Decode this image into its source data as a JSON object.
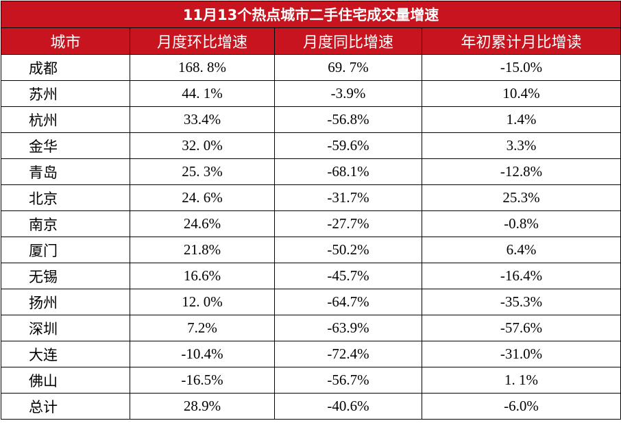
{
  "table": {
    "title": "11月13个热点城市二手住宅成交量增速",
    "header": [
      "城市",
      "月度环比增速",
      "月度同比增速",
      "年初累计月比增读"
    ],
    "rows": [
      [
        "成都",
        "168. 8%",
        "69. 7%",
        "-15.0%"
      ],
      [
        "苏州",
        "44. 1%",
        "-3.9%",
        "10.4%"
      ],
      [
        "杭州",
        "33.4%",
        "-56.8%",
        "1.4%"
      ],
      [
        "金华",
        "32. 0%",
        "-59.6%",
        "3.3%"
      ],
      [
        "青岛",
        "25. 3%",
        "-68.1%",
        "-12.8%"
      ],
      [
        "北京",
        "24. 6%",
        "-31.7%",
        "25.3%"
      ],
      [
        "南京",
        "24.6%",
        "-27.7%",
        "-0.8%"
      ],
      [
        "厦门",
        "21.8%",
        "-50.2%",
        "6.4%"
      ],
      [
        "无锡",
        "16.6%",
        "-45.7%",
        "-16.4%"
      ],
      [
        "扬州",
        "12. 0%",
        "-64.7%",
        "-35.3%"
      ],
      [
        "深圳",
        "7.2%",
        "-63.9%",
        "-57.6%"
      ],
      [
        "大连",
        "-10.4%",
        "-72.4%",
        "-31.0%"
      ],
      [
        "佛山",
        "-16.5%",
        "-56.7%",
        "1. 1%"
      ],
      [
        "总计",
        "28.9%",
        "-40.6%",
        "-6.0%"
      ]
    ]
  }
}
